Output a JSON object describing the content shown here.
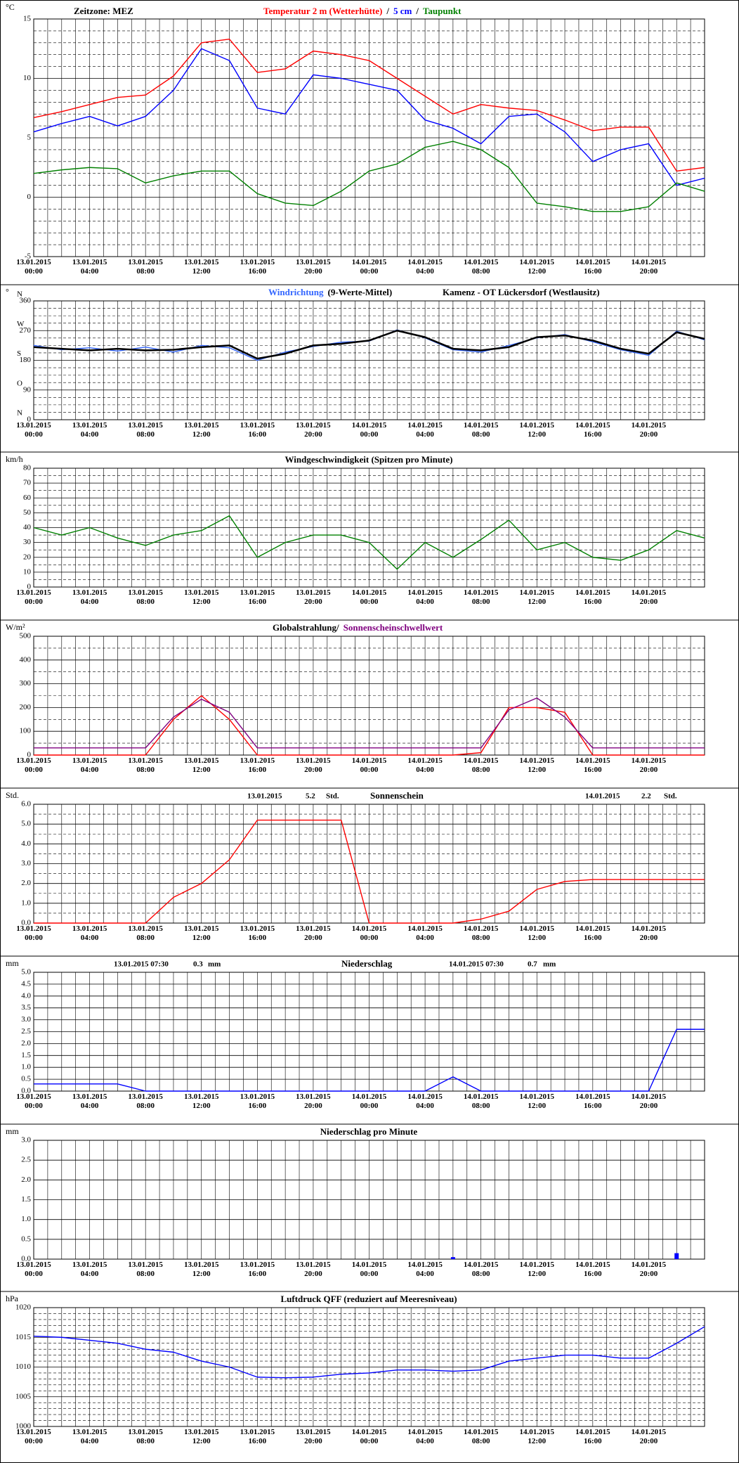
{
  "chart_data": [
    {
      "type": "line",
      "note": "Zeitzone: MEZ",
      "unit": "°C",
      "legend_separator": "/",
      "categories": [
        "13.01.2015 00:00",
        null,
        "13.01.2015 04:00",
        null,
        "13.01.2015 08:00",
        null,
        "13.01.2015 12:00",
        null,
        "13.01.2015 16:00",
        null,
        "13.01.2015 20:00",
        null,
        "14.01.2015 00:00",
        null,
        "14.01.2015 04:00",
        null,
        "14.01.2015 08:00",
        null,
        "14.01.2015 12:00",
        null,
        "14.01.2015 16:00",
        null,
        "14.01.2015 20:00",
        null,
        null
      ],
      "series": [
        {
          "name": "Temperatur 2 m (Wetterhütte)",
          "color": "#ff0000",
          "values": [
            6.7,
            7.2,
            7.8,
            8.4,
            8.6,
            10.2,
            13.0,
            13.3,
            10.5,
            10.8,
            12.3,
            12.0,
            11.5,
            10.0,
            8.5,
            7.0,
            7.8,
            7.5,
            7.3,
            6.5,
            5.6,
            5.9,
            5.9,
            2.2,
            2.5
          ]
        },
        {
          "name": "5 cm",
          "color": "#0000ff",
          "values": [
            5.5,
            6.2,
            6.8,
            6.0,
            6.8,
            9.0,
            12.5,
            11.5,
            7.5,
            7.0,
            10.3,
            10.0,
            9.5,
            9.0,
            6.5,
            5.8,
            4.5,
            6.8,
            7.0,
            5.5,
            3.0,
            4.0,
            4.5,
            1.0,
            1.6
          ]
        },
        {
          "name": "Taupunkt",
          "color": "#008000",
          "values": [
            2.0,
            2.3,
            2.5,
            2.4,
            1.2,
            1.8,
            2.2,
            2.2,
            0.3,
            -0.5,
            -0.7,
            0.5,
            2.2,
            2.8,
            4.2,
            4.7,
            4.0,
            2.5,
            -0.5,
            -0.8,
            -1.2,
            -1.2,
            -0.8,
            1.2,
            0.5
          ]
        }
      ],
      "ylim": [
        -5,
        15
      ],
      "yticks": [
        -5,
        0,
        5,
        10,
        15
      ],
      "grid": true
    },
    {
      "type": "line",
      "unit": "°",
      "station": "Kamenz - OT Lückersdorf (Westlausitz)",
      "categories": [
        "13.01.2015 00:00",
        null,
        "13.01.2015 04:00",
        null,
        "13.01.2015 08:00",
        null,
        "13.01.2015 12:00",
        null,
        "13.01.2015 16:00",
        null,
        "13.01.2015 20:00",
        null,
        "14.01.2015 00:00",
        null,
        "14.01.2015 04:00",
        null,
        "14.01.2015 08:00",
        null,
        "14.01.2015 12:00",
        null,
        "14.01.2015 16:00",
        null,
        "14.01.2015 20:00",
        null,
        null
      ],
      "series": [
        {
          "name": "Windrichtung",
          "color": "#3366ff",
          "values": [
            225,
            212,
            218,
            208,
            220,
            205,
            225,
            218,
            180,
            205,
            222,
            235,
            238,
            272,
            248,
            212,
            205,
            225,
            248,
            258,
            236,
            212,
            195,
            268,
            242
          ]
        },
        {
          "name": "(9-Werte-Mittel)",
          "color": "#000000",
          "values": [
            220,
            215,
            210,
            215,
            210,
            212,
            220,
            225,
            185,
            200,
            225,
            230,
            240,
            270,
            250,
            215,
            210,
            220,
            250,
            255,
            240,
            215,
            200,
            265,
            245
          ]
        }
      ],
      "direction_labels": [
        {
          "value": 360,
          "label": "N"
        },
        {
          "value": 270,
          "label": "W"
        },
        {
          "value": 180,
          "label": "S"
        },
        {
          "value": 90,
          "label": "O"
        },
        {
          "value": 0,
          "label": "N"
        }
      ],
      "ylim": [
        0,
        360
      ],
      "yticks": [
        0,
        90,
        180,
        270,
        360
      ],
      "grid": true
    },
    {
      "type": "line",
      "unit": "km/h",
      "title": "Windgeschwindigkeit (Spitzen pro Minute)",
      "categories": [
        "13.01.2015 00:00",
        null,
        "13.01.2015 04:00",
        null,
        "13.01.2015 08:00",
        null,
        "13.01.2015 12:00",
        null,
        "13.01.2015 16:00",
        null,
        "13.01.2015 20:00",
        null,
        "14.01.2015 00:00",
        null,
        "14.01.2015 04:00",
        null,
        "14.01.2015 08:00",
        null,
        "14.01.2015 12:00",
        null,
        "14.01.2015 16:00",
        null,
        "14.01.2015 20:00",
        null,
        null
      ],
      "series": [
        {
          "name": "Windgeschwindigkeit",
          "color": "#008000",
          "values": [
            40,
            35,
            40,
            33,
            28,
            35,
            38,
            48,
            20,
            30,
            35,
            35,
            30,
            12,
            30,
            20,
            32,
            45,
            25,
            30,
            20,
            18,
            25,
            38,
            33
          ]
        }
      ],
      "ylim": [
        0,
        80
      ],
      "yticks": [
        0,
        10,
        20,
        30,
        40,
        50,
        60,
        70,
        80
      ],
      "grid": true
    },
    {
      "type": "line",
      "unit": "W/m²",
      "categories": [
        "13.01.2015 00:00",
        null,
        "13.01.2015 04:00",
        null,
        "13.01.2015 08:00",
        null,
        "13.01.2015 12:00",
        null,
        "13.01.2015 16:00",
        null,
        "13.01.2015 20:00",
        null,
        "14.01.2015 00:00",
        null,
        "14.01.2015 04:00",
        null,
        "14.01.2015 08:00",
        null,
        "14.01.2015 12:00",
        null,
        "14.01.2015 16:00",
        null,
        "14.01.2015 20:00",
        null,
        null
      ],
      "series": [
        {
          "name": "Globalstrahlung/",
          "color": "#ff0000",
          "legend_color": "#000000",
          "values": [
            0,
            0,
            0,
            0,
            0,
            150,
            250,
            150,
            0,
            0,
            0,
            0,
            0,
            0,
            0,
            0,
            10,
            200,
            200,
            180,
            0,
            0,
            0,
            0,
            0
          ]
        },
        {
          "name": "Sonnenscheinschwellwert",
          "color": "#800080",
          "values": [
            30,
            30,
            30,
            30,
            30,
            160,
            235,
            180,
            30,
            30,
            30,
            30,
            30,
            30,
            30,
            30,
            30,
            190,
            240,
            160,
            30,
            30,
            30,
            30,
            30
          ]
        }
      ],
      "ylim": [
        0,
        500
      ],
      "yticks": [
        0,
        100,
        200,
        300,
        400,
        500
      ],
      "grid": true
    },
    {
      "type": "line",
      "unit": "Std.",
      "title": "Sonnenschein",
      "annotations": [
        {
          "date": "13.01.2015",
          "value": 5.2,
          "unit": "Std."
        },
        {
          "date": "14.01.2015",
          "value": 2.2,
          "unit": "Std."
        }
      ],
      "categories": [
        "13.01.2015 00:00",
        null,
        "13.01.2015 04:00",
        null,
        "13.01.2015 08:00",
        null,
        "13.01.2015 12:00",
        null,
        "13.01.2015 16:00",
        null,
        "13.01.2015 20:00",
        null,
        "14.01.2015 00:00",
        null,
        "14.01.2015 04:00",
        null,
        "14.01.2015 08:00",
        null,
        "14.01.2015 12:00",
        null,
        "14.01.2015 16:00",
        null,
        "14.01.2015 20:00",
        null,
        null
      ],
      "series": [
        {
          "name": "Sonnenschein",
          "color": "#ff0000",
          "values": [
            0,
            0,
            0,
            0,
            0,
            1.3,
            2.0,
            3.2,
            5.2,
            5.2,
            5.2,
            5.2,
            0,
            0,
            0,
            0,
            0.2,
            0.6,
            1.7,
            2.1,
            2.2,
            2.2,
            2.2,
            2.2,
            2.2
          ]
        }
      ],
      "ylim": [
        0,
        6
      ],
      "yticks": [
        {
          "value": 0,
          "label": "0.0"
        },
        {
          "value": 1,
          "label": "1.0"
        },
        {
          "value": 2,
          "label": "2.0"
        },
        {
          "value": 3,
          "label": "3.0"
        },
        {
          "value": 4,
          "label": "4.0"
        },
        {
          "value": 5,
          "label": "5.0"
        },
        {
          "value": 6,
          "label": "6.0"
        }
      ],
      "grid": true
    },
    {
      "type": "line",
      "unit": "mm",
      "title": "Niederschlag",
      "annotations": [
        {
          "date": "13.01.2015 07:30",
          "value": 0.3,
          "unit": "mm"
        },
        {
          "date": "14.01.2015 07:30",
          "value": 0.7,
          "unit": "mm"
        }
      ],
      "categories": [
        "13.01.2015 00:00",
        null,
        "13.01.2015 04:00",
        null,
        "13.01.2015 08:00",
        null,
        "13.01.2015 12:00",
        null,
        "13.01.2015 16:00",
        null,
        "13.01.2015 20:00",
        null,
        "14.01.2015 00:00",
        null,
        "14.01.2015 04:00",
        null,
        "14.01.2015 08:00",
        null,
        "14.01.2015 12:00",
        null,
        "14.01.2015 16:00",
        null,
        "14.01.2015 20:00",
        null,
        null
      ],
      "series": [
        {
          "name": "Niederschlag",
          "color": "#0000ff",
          "values": [
            0.3,
            0.3,
            0.3,
            0.3,
            0,
            0,
            0,
            0,
            0,
            0,
            0,
            0,
            0,
            0,
            0,
            0.6,
            0,
            0,
            0,
            0,
            0,
            0,
            0,
            2.6,
            2.6
          ]
        }
      ],
      "ylim": [
        0,
        5
      ],
      "yticks": [
        {
          "value": 0,
          "label": "0.0"
        },
        {
          "value": 0.5,
          "label": "0.5"
        },
        {
          "value": 1,
          "label": "1.0"
        },
        {
          "value": 1.5,
          "label": "1.5"
        },
        {
          "value": 2,
          "label": "2.0"
        },
        {
          "value": 2.5,
          "label": "2.5"
        },
        {
          "value": 3,
          "label": "3.0"
        },
        {
          "value": 3.5,
          "label": "3.5"
        },
        {
          "value": 4,
          "label": "4.0"
        },
        {
          "value": 4.5,
          "label": "4.5"
        },
        {
          "value": 5,
          "label": "5.0"
        }
      ],
      "grid": true
    },
    {
      "type": "bar",
      "unit": "mm",
      "title": "Niederschlag pro Minute",
      "color": "#0000ff",
      "categories": [
        "13.01.2015 00:00",
        null,
        "13.01.2015 04:00",
        null,
        "13.01.2015 08:00",
        null,
        "13.01.2015 12:00",
        null,
        "13.01.2015 16:00",
        null,
        "13.01.2015 20:00",
        null,
        "14.01.2015 00:00",
        null,
        "14.01.2015 04:00",
        null,
        "14.01.2015 08:00",
        null,
        "14.01.2015 12:00",
        null,
        "14.01.2015 16:00",
        null,
        "14.01.2015 20:00",
        null,
        null
      ],
      "values": [
        0,
        0,
        0,
        0,
        0,
        0,
        0,
        0,
        0,
        0,
        0,
        0,
        0,
        0,
        0,
        0.05,
        0,
        0,
        0,
        0,
        0,
        0,
        0,
        0.15,
        0
      ],
      "ylim": [
        0,
        3
      ],
      "yticks": [
        {
          "value": 0,
          "label": "0.0"
        },
        {
          "value": 0.5,
          "label": "0.5"
        },
        {
          "value": 1,
          "label": "1.0"
        },
        {
          "value": 1.5,
          "label": "1.5"
        },
        {
          "value": 2,
          "label": "2.0"
        },
        {
          "value": 2.5,
          "label": "2.5"
        },
        {
          "value": 3,
          "label": "3.0"
        }
      ],
      "grid": true
    },
    {
      "type": "line",
      "unit": "hPa",
      "title": "Luftdruck QFF (reduziert auf Meeresniveau)",
      "categories": [
        "13.01.2015 00:00",
        null,
        "13.01.2015 04:00",
        null,
        "13.01.2015 08:00",
        null,
        "13.01.2015 12:00",
        null,
        "13.01.2015 16:00",
        null,
        "13.01.2015 20:00",
        null,
        "14.01.2015 00:00",
        null,
        "14.01.2015 04:00",
        null,
        "14.01.2015 08:00",
        null,
        "14.01.2015 12:00",
        null,
        "14.01.2015 16:00",
        null,
        "14.01.2015 20:00",
        null,
        null
      ],
      "series": [
        {
          "name": "Luftdruck",
          "color": "#0000ff",
          "values": [
            1015.2,
            1015,
            1014.5,
            1014,
            1013,
            1012.5,
            1011,
            1010,
            1008.3,
            1008.2,
            1008.3,
            1008.8,
            1009,
            1009.5,
            1009.5,
            1009.3,
            1009.5,
            1011,
            1011.5,
            1012,
            1012,
            1011.5,
            1011.5,
            1014,
            1016.8
          ]
        }
      ],
      "ylim": [
        1000,
        1020
      ],
      "yticks": [
        1000,
        1005,
        1010,
        1015,
        1020
      ],
      "grid": true
    }
  ]
}
